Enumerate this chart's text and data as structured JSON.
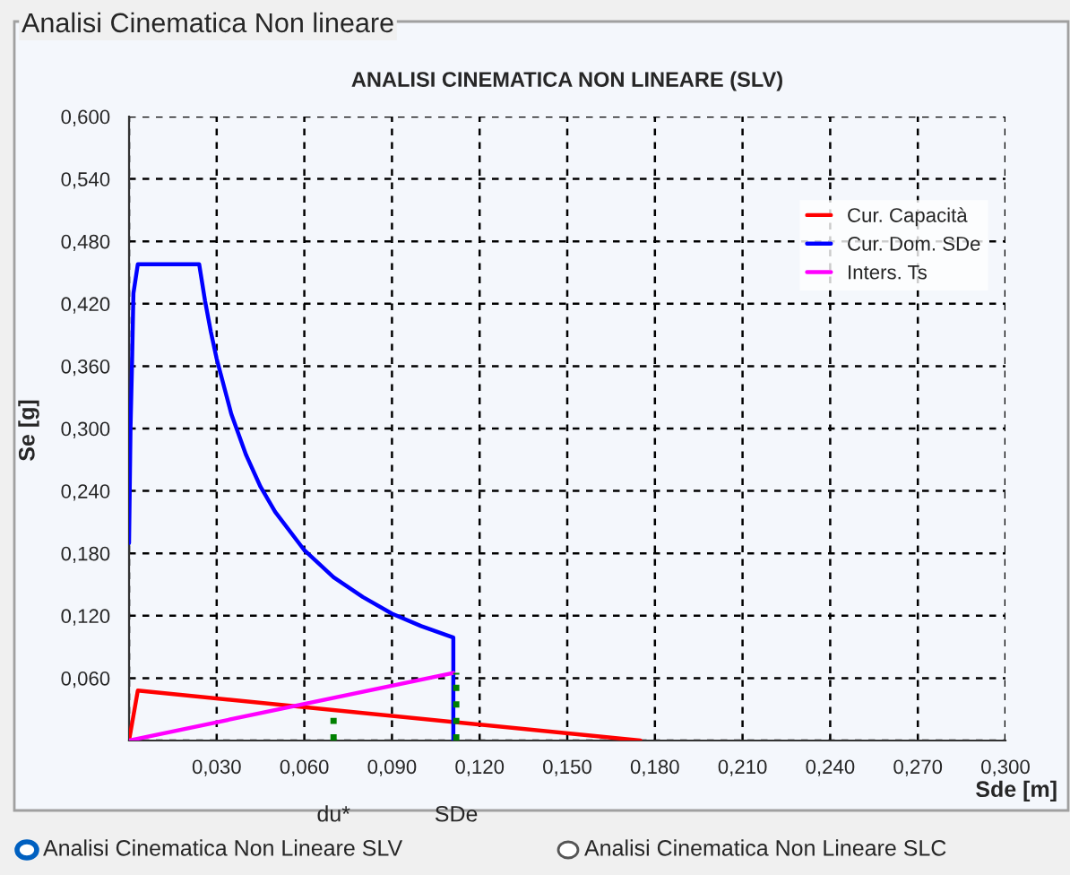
{
  "chart_data": {
    "type": "line",
    "title": "ANALISI CINEMATICA NON LINEARE (SLV)",
    "xlabel": "Sde [m]",
    "ylabel": "Se [g]",
    "series": [
      {
        "name": "Cur. Capacità",
        "color": "#ff0000",
        "x": [
          0,
          0.003,
          0.175
        ],
        "values": [
          0,
          0.048,
          0
        ]
      },
      {
        "name": "Cur. Dom. SDe",
        "color": "#0000ff",
        "x": [
          0,
          0.0005,
          0.001,
          0.0015,
          0.003,
          0.024,
          0.026,
          0.028,
          0.03,
          0.035,
          0.04,
          0.045,
          0.05,
          0.06,
          0.07,
          0.08,
          0.09,
          0.1,
          0.111,
          0.111
        ],
        "values": [
          0.19,
          0.3,
          0.36,
          0.43,
          0.458,
          0.458,
          0.423,
          0.393,
          0.367,
          0.314,
          0.275,
          0.244,
          0.22,
          0.183,
          0.157,
          0.138,
          0.122,
          0.11,
          0.099,
          0
        ]
      },
      {
        "name": "Inters. Ts",
        "color": "#ff00ff",
        "x": [
          0,
          0.111
        ],
        "values": [
          0,
          0.065
        ]
      },
      {
        "color": "#008000",
        "line_style": "dotted",
        "x": [
          0.07,
          0.07
        ],
        "values": [
          0,
          0.025
        ]
      },
      {
        "color": "#008000",
        "line_style": "dotted",
        "x": [
          0.112,
          0.112
        ],
        "values": [
          0,
          0.065
        ]
      }
    ],
    "xlim": [
      0,
      0.3
    ],
    "ylim": [
      0,
      0.6
    ],
    "xticks": [
      {
        "value": 0,
        "label": null
      },
      {
        "value": 0.03,
        "label": "0,030"
      },
      {
        "value": 0.06,
        "label": "0,060"
      },
      {
        "value": 0.09,
        "label": "0,090"
      },
      {
        "value": 0.12,
        "label": "0,120"
      },
      {
        "value": 0.15,
        "label": "0,150"
      },
      {
        "value": 0.18,
        "label": "0,180"
      },
      {
        "value": 0.21,
        "label": "0,210"
      },
      {
        "value": 0.24,
        "label": "0,240"
      },
      {
        "value": 0.27,
        "label": "0,270"
      },
      {
        "value": 0.3,
        "label": "0,300"
      }
    ],
    "yticks": [
      {
        "value": 0,
        "label": null
      },
      {
        "value": 0.06,
        "label": "0,060"
      },
      {
        "value": 0.12,
        "label": "0,120"
      },
      {
        "value": 0.18,
        "label": "0,180"
      },
      {
        "value": 0.24,
        "label": "0,240"
      },
      {
        "value": 0.3,
        "label": "0,300"
      },
      {
        "value": 0.36,
        "label": "0,360"
      },
      {
        "value": 0.42,
        "label": "0,420"
      },
      {
        "value": 0.48,
        "label": "0,480"
      },
      {
        "value": 0.54,
        "label": "0,540"
      },
      {
        "value": 0.6,
        "label": "0,600"
      }
    ],
    "grid": true,
    "legend": "top right",
    "annotations": [
      {
        "text": "du*",
        "x": 0.07,
        "y": 0
      },
      {
        "text": "SDe",
        "x": 0.112,
        "y": 0
      },
      "Analisi Cinematica Non lineare",
      "Analisi Cinematica Non Lineare SLV",
      "Analisi Cinematica Non Lineare SLC"
    ]
  }
}
